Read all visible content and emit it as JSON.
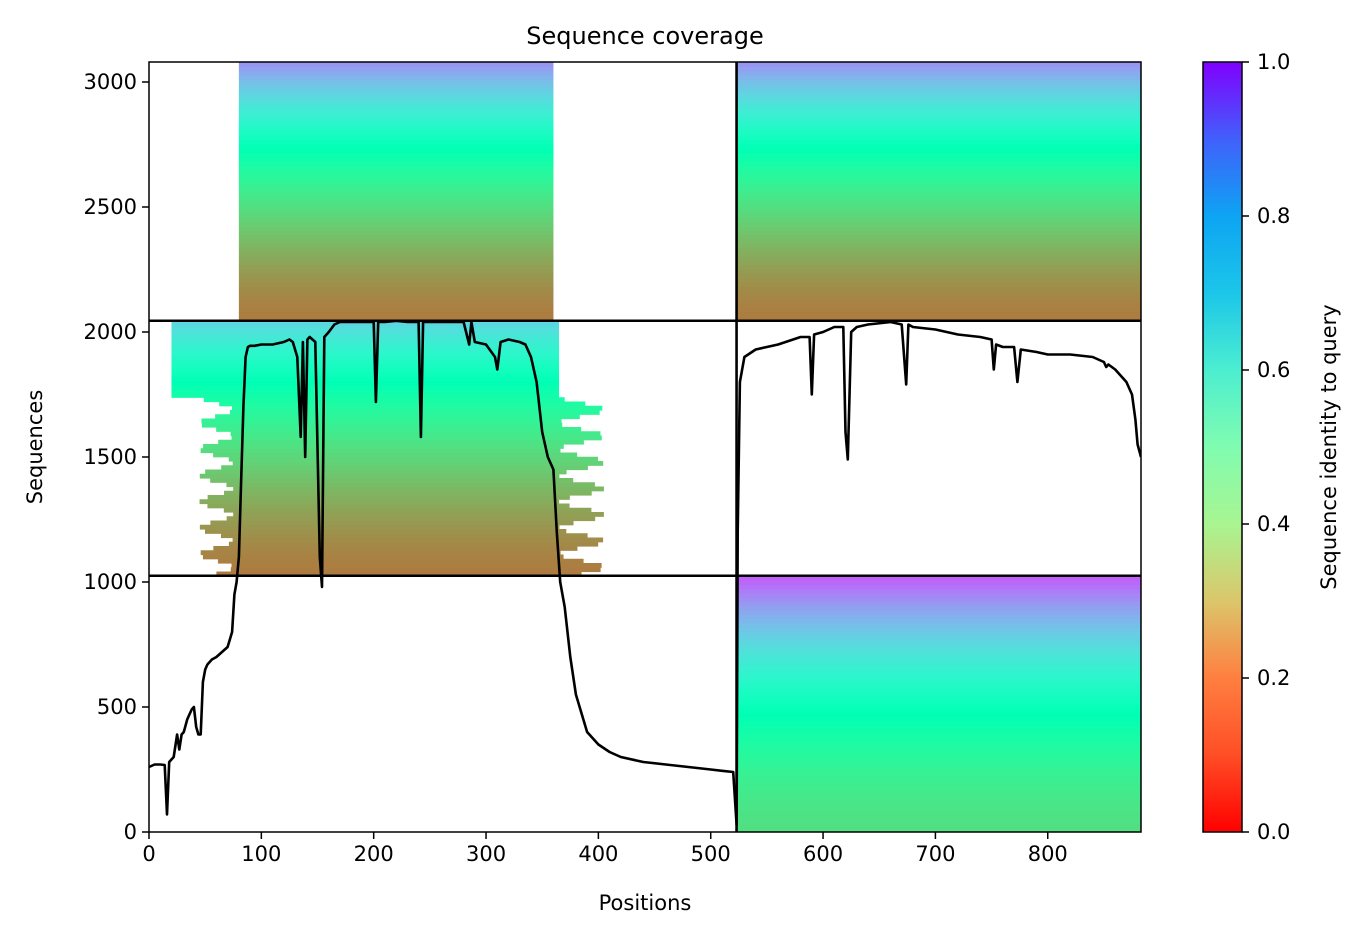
{
  "chart_data": {
    "type": "heatmap",
    "title": "Sequence coverage",
    "xlabel": "Positions",
    "ylabel": "Sequences",
    "xlim": [
      0,
      883
    ],
    "ylim": [
      0,
      3080
    ],
    "xticks": [
      0,
      100,
      200,
      300,
      400,
      500,
      600,
      700,
      800
    ],
    "yticks": [
      0,
      500,
      1000,
      1500,
      2000,
      2500,
      3000
    ],
    "grid": false,
    "colormap": "rainbow_r",
    "colorbar": {
      "label": "Sequence identity to query",
      "range": [
        0,
        1
      ],
      "ticks": [
        "0.0",
        "0.2",
        "0.4",
        "0.6",
        "0.8",
        "1.0"
      ]
    },
    "chain_boundary_x": 523,
    "block_boundaries_y": [
      1025,
      2045
    ],
    "blocks": [
      {
        "x_range": [
          0,
          523
        ],
        "y_range": [
          1025,
          2045
        ],
        "coverage_x": [
          20,
          365
        ],
        "identity_top": 0.68,
        "identity_bottom": 0.16
      },
      {
        "x_range": [
          0,
          523
        ],
        "y_range": [
          2045,
          3080
        ],
        "coverage_x": [
          80,
          360
        ],
        "identity_top": 0.8,
        "identity_bottom": 0.16
      },
      {
        "x_range": [
          523,
          883
        ],
        "y_range": [
          2045,
          3080
        ],
        "coverage_x": [
          523,
          883
        ],
        "identity_top": 0.8,
        "identity_bottom": 0.16
      },
      {
        "x_range": [
          523,
          883
        ],
        "y_range": [
          0,
          1025
        ],
        "coverage_x": [
          523,
          883
        ],
        "identity_top": 0.88,
        "identity_bottom": 0.34
      }
    ],
    "coverage_line": {
      "x": [
        0,
        5,
        10,
        14,
        16,
        18,
        22,
        25,
        27,
        29,
        31,
        34,
        36,
        38,
        40,
        42,
        44,
        46,
        48,
        50,
        52,
        56,
        60,
        65,
        70,
        74,
        76,
        78,
        80,
        82,
        84,
        86,
        88,
        90,
        94,
        100,
        110,
        120,
        125,
        128,
        132,
        135,
        137,
        139,
        141,
        143,
        148,
        152,
        154,
        156,
        160,
        165,
        170,
        180,
        190,
        200,
        202,
        204,
        210,
        220,
        230,
        240,
        242,
        244,
        250,
        260,
        270,
        280,
        285,
        287,
        290,
        300,
        308,
        310,
        313,
        320,
        330,
        335,
        340,
        345,
        350,
        355,
        360,
        363,
        366,
        370,
        375,
        380,
        390,
        400,
        410,
        420,
        440,
        460,
        480,
        500,
        510,
        520,
        523,
        524,
        526,
        530,
        540,
        560,
        580,
        588,
        590,
        592,
        600,
        610,
        618,
        620,
        622,
        625,
        630,
        640,
        660,
        670,
        674,
        676,
        680,
        700,
        720,
        740,
        750,
        752,
        754,
        760,
        770,
        773,
        776,
        790,
        800,
        820,
        840,
        850,
        852,
        854,
        860,
        870,
        875,
        878,
        880,
        883
      ],
      "y": [
        260,
        270,
        270,
        268,
        70,
        280,
        300,
        390,
        330,
        390,
        400,
        450,
        470,
        490,
        500,
        420,
        390,
        390,
        600,
        650,
        670,
        690,
        700,
        720,
        740,
        800,
        950,
        1000,
        1100,
        1400,
        1700,
        1900,
        1940,
        1945,
        1945,
        1950,
        1950,
        1960,
        1970,
        1960,
        1900,
        1580,
        1960,
        1500,
        1970,
        1980,
        1960,
        1100,
        980,
        1980,
        2000,
        2030,
        2040,
        2040,
        2040,
        2040,
        1720,
        2040,
        2040,
        2045,
        2040,
        2040,
        1580,
        2040,
        2040,
        2040,
        2040,
        2040,
        1950,
        2040,
        1960,
        1950,
        1900,
        1850,
        1960,
        1970,
        1960,
        1950,
        1900,
        1800,
        1600,
        1500,
        1450,
        1200,
        1000,
        900,
        700,
        550,
        400,
        350,
        320,
        300,
        280,
        270,
        260,
        250,
        245,
        240,
        30,
        1200,
        1800,
        1900,
        1930,
        1950,
        1980,
        1980,
        1750,
        1990,
        2000,
        2020,
        2020,
        1600,
        1490,
        2000,
        2020,
        2030,
        2040,
        2030,
        1790,
        2030,
        2020,
        2010,
        1990,
        1980,
        1970,
        1850,
        1950,
        1940,
        1940,
        1800,
        1930,
        1920,
        1910,
        1910,
        1900,
        1880,
        1860,
        1870,
        1850,
        1800,
        1750,
        1650,
        1550,
        1500
      ]
    }
  }
}
